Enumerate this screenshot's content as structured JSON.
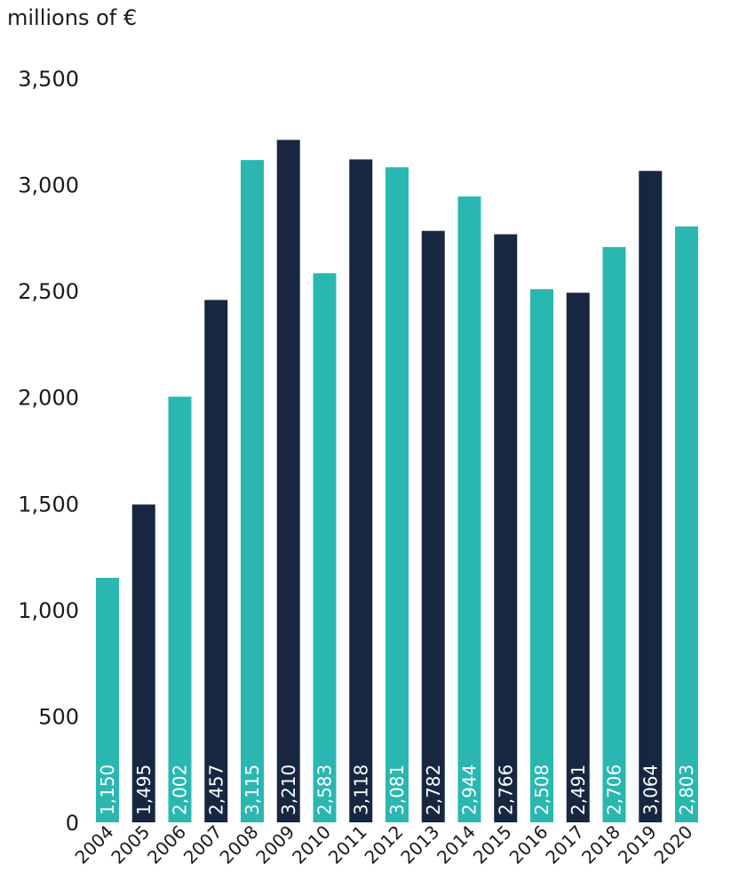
{
  "chart_data": {
    "type": "bar",
    "unit_label": "millions of €",
    "categories": [
      "2004",
      "2005",
      "2006",
      "2007",
      "2008",
      "2009",
      "2010",
      "2011",
      "2012",
      "2013",
      "2014",
      "2015",
      "2016",
      "2017",
      "2018",
      "2019",
      "2020"
    ],
    "values": [
      1150,
      1495,
      2002,
      2457,
      3115,
      3210,
      2583,
      3118,
      3081,
      2782,
      2944,
      2766,
      2508,
      2491,
      2706,
      3064,
      2803
    ],
    "data_labels": [
      "1,150",
      "1,495",
      "2,002",
      "2,457",
      "3,115",
      "3,210",
      "2,583",
      "3,118",
      "3,081",
      "2,782",
      "2,944",
      "2,766",
      "2,508",
      "2,491",
      "2,706",
      "3,064",
      "2,803"
    ],
    "y_ticks": [
      0,
      500,
      1000,
      1500,
      2000,
      2500,
      3000,
      3500
    ],
    "y_tick_labels": [
      "0",
      "500",
      "1,000",
      "1,500",
      "2,000",
      "2,500",
      "3,000",
      "3,500"
    ],
    "ylim": [
      0,
      3500
    ],
    "grid": false,
    "legend": "none",
    "bar_colors": [
      "#2ab7b1",
      "#172742"
    ],
    "label_color": "#ffffff",
    "text_color": "#1a1a1a"
  }
}
